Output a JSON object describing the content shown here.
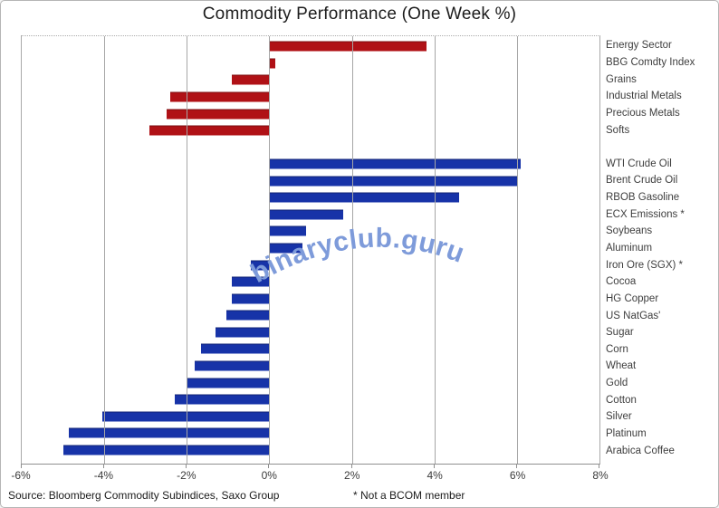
{
  "source": "Source: Bloomberg Commodity Subindices, Saxo Group",
  "footnote": "* Not a BCOM member",
  "watermark": "binaryclub.guru",
  "colors": {
    "sector_bar": "#b01116",
    "commodity_bar": "#1733a8",
    "watermark": "#7e9bda",
    "gridline": "#a6a6a6",
    "axis": "#8f8f8f"
  },
  "chart_data": {
    "type": "bar",
    "orientation": "horizontal",
    "title": "Commodity Performance (One Week %)",
    "xlabel": "",
    "ylabel": "",
    "xlim": [
      -6,
      8
    ],
    "grid": true,
    "legend": "none",
    "ticks": [
      {
        "value": -6,
        "label": "-6%"
      },
      {
        "value": -4,
        "label": "-4%"
      },
      {
        "value": -2,
        "label": "-2%"
      },
      {
        "value": 0,
        "label": "0%"
      },
      {
        "value": 2,
        "label": "2%"
      },
      {
        "value": 4,
        "label": "4%"
      },
      {
        "value": 6,
        "label": "6%"
      },
      {
        "value": 8,
        "label": "8%"
      }
    ],
    "groups": [
      {
        "name": "sector-indices",
        "color": "#b01116",
        "items": [
          {
            "label": "Energy Sector",
            "value": 3.8
          },
          {
            "label": "BBG Comdty Index",
            "value": 0.15
          },
          {
            "label": "Grains",
            "value": -0.9
          },
          {
            "label": "Industrial Metals",
            "value": -2.4
          },
          {
            "label": "Precious Metals",
            "value": -2.5
          },
          {
            "label": "Softs",
            "value": -2.9
          }
        ]
      },
      {
        "name": "single-commodities",
        "color": "#1733a8",
        "items": [
          {
            "label": "WTI Crude Oil",
            "value": 6.1
          },
          {
            "label": "Brent Crude Oil",
            "value": 6.0
          },
          {
            "label": "RBOB Gasoline",
            "value": 4.6
          },
          {
            "label": "ECX Emissions *",
            "value": 1.8
          },
          {
            "label": "Soybeans",
            "value": 0.9
          },
          {
            "label": "Aluminum",
            "value": 0.8
          },
          {
            "label": "Iron Ore (SGX) *",
            "value": -0.45
          },
          {
            "label": "Cocoa",
            "value": -0.9
          },
          {
            "label": "HG Copper",
            "value": -0.9
          },
          {
            "label": "US NatGas'",
            "value": -1.05
          },
          {
            "label": "Sugar",
            "value": -1.3
          },
          {
            "label": "Corn",
            "value": -1.65
          },
          {
            "label": "Wheat",
            "value": -1.8
          },
          {
            "label": "Gold",
            "value": -2.0
          },
          {
            "label": "Cotton",
            "value": -2.3
          },
          {
            "label": "Silver",
            "value": -4.05
          },
          {
            "label": "Platinum",
            "value": -4.85
          },
          {
            "label": "Arabica Coffee",
            "value": -5.0
          }
        ]
      }
    ]
  }
}
